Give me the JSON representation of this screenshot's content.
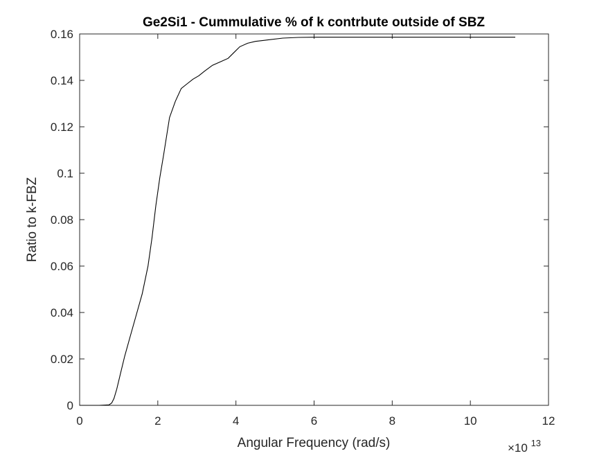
{
  "chart_data": {
    "type": "line",
    "title": "Ge2Si1 - Cummulative % of k contrbute outside of SBZ",
    "xlabel": "Angular Frequency (rad/s)",
    "ylabel": "Ratio to k-FBZ",
    "x_exponent_label": "×10",
    "x_exponent_power": "13",
    "xlim": [
      0,
      12
    ],
    "ylim": [
      0,
      0.16
    ],
    "xticks": [
      0,
      2,
      4,
      6,
      8,
      10,
      12
    ],
    "xtick_labels": [
      "0",
      "2",
      "4",
      "6",
      "8",
      "10",
      "12"
    ],
    "yticks": [
      0,
      0.02,
      0.04,
      0.06,
      0.08,
      0.1,
      0.12,
      0.14,
      0.16
    ],
    "ytick_labels": [
      "0",
      "0.02",
      "0.04",
      "0.06",
      "0.08",
      "0.1",
      "0.12",
      "0.14",
      "0.16"
    ],
    "grid": false,
    "line_color": "#000000",
    "series": [
      {
        "x": [
          0,
          0.5,
          0.75,
          0.82,
          0.88,
          0.95,
          1.05,
          1.15,
          1.3,
          1.45,
          1.6,
          1.75,
          1.85,
          1.95,
          2.05,
          2.15,
          2.3,
          2.45,
          2.6,
          2.75,
          2.9,
          3.05,
          3.2,
          3.4,
          3.6,
          3.8,
          3.95,
          4.1,
          4.3,
          4.5,
          4.8,
          5.2,
          5.6,
          6.0,
          7.0,
          8.0,
          9.0,
          10.0,
          11.15
        ],
        "y": [
          0,
          0,
          0.0002,
          0.001,
          0.003,
          0.007,
          0.014,
          0.021,
          0.03,
          0.039,
          0.048,
          0.06,
          0.072,
          0.086,
          0.098,
          0.108,
          0.124,
          0.131,
          0.1365,
          0.1385,
          0.1405,
          0.142,
          0.144,
          0.1465,
          0.148,
          0.1495,
          0.152,
          0.1545,
          0.156,
          0.1568,
          0.1574,
          0.1582,
          0.1585,
          0.1586,
          0.1586,
          0.1586,
          0.1586,
          0.1586,
          0.1586
        ]
      }
    ]
  }
}
